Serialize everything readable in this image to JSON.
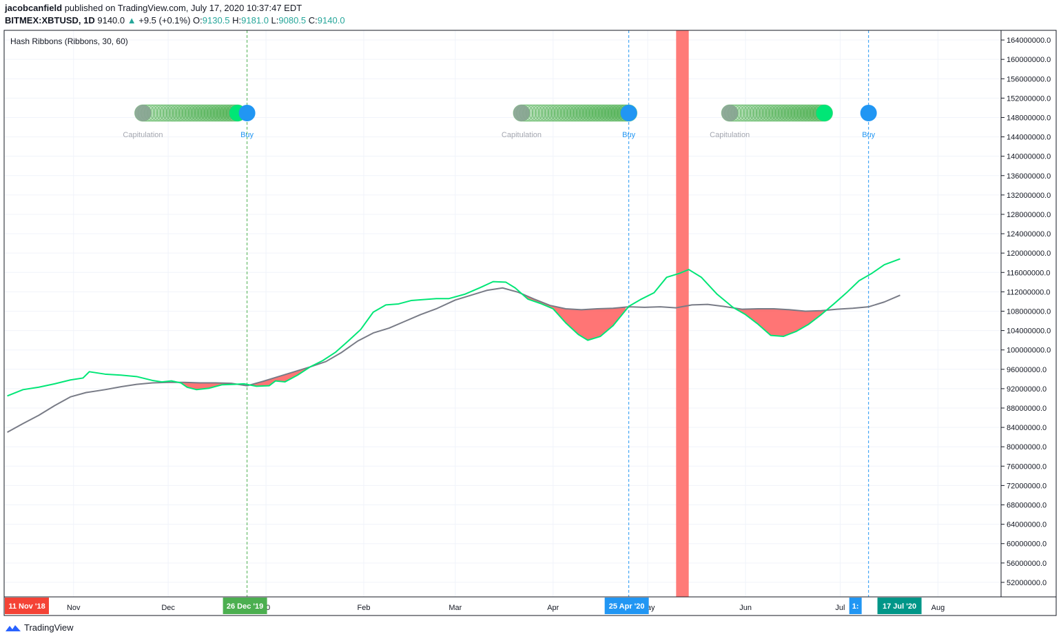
{
  "header": {
    "publisher": "jacobcanfield",
    "published_text": "published on TradingView.com, July 17, 2020 10:37:47 EDT",
    "symbol": "BITMEX:XBTUSD, 1D",
    "price": "9140.0",
    "change": "+9.5 (+0.1%)",
    "o_label": "O:",
    "o_value": "9130.5",
    "h_label": "H:",
    "h_value": "9181.0",
    "l_label": "L:",
    "l_value": "9080.5",
    "c_label": "C:",
    "c_value": "9140.0"
  },
  "footer": {
    "brand": "TradingView"
  },
  "chart_data": {
    "type": "line",
    "title": "Hash Ribbons (Ribbons, 30, 60)",
    "ylim": [
      49000000,
      166000000
    ],
    "y_ticks": [
      52000000,
      56000000,
      60000000,
      64000000,
      68000000,
      72000000,
      76000000,
      80000000,
      84000000,
      88000000,
      92000000,
      96000000,
      100000000,
      104000000,
      108000000,
      112000000,
      116000000,
      120000000,
      124000000,
      128000000,
      132000000,
      136000000,
      140000000,
      144000000,
      148000000,
      152000000,
      156000000,
      160000000,
      164000000
    ],
    "y_tick_labels": [
      "52000000.0",
      "56000000.0",
      "60000000.0",
      "64000000.0",
      "68000000.0",
      "72000000.0",
      "76000000.0",
      "80000000.0",
      "84000000.0",
      "88000000.0",
      "92000000.0",
      "96000000.0",
      "100000000.0",
      "104000000.0",
      "108000000.0",
      "112000000.0",
      "116000000.0",
      "120000000.0",
      "124000000.0",
      "128000000.0",
      "132000000.0",
      "136000000.0",
      "140000000.0",
      "144000000.0",
      "148000000.0",
      "152000000.0",
      "156000000.0",
      "160000000.0",
      "164000000.0"
    ],
    "x_range": [
      "2019-10-10",
      "2020-08-21"
    ],
    "x_ticks": [
      {
        "date": "2019-11-01",
        "label": "Nov"
      },
      {
        "date": "2019-12-01",
        "label": "Dec"
      },
      {
        "date": "2020-01-01",
        "label": "20"
      },
      {
        "date": "2020-02-01",
        "label": "Feb"
      },
      {
        "date": "2020-03-01",
        "label": "Mar"
      },
      {
        "date": "2020-04-01",
        "label": "Apr"
      },
      {
        "date": "2020-05-01",
        "label": "May"
      },
      {
        "date": "2020-06-01",
        "label": "Jun"
      },
      {
        "date": "2020-07-01",
        "label": "Jul"
      },
      {
        "date": "2020-08-01",
        "label": "Aug"
      }
    ],
    "series": [
      {
        "name": "",
        "color": "#00e676",
        "points": [
          [
            "2019-10-11",
            90500000
          ],
          [
            "2019-10-16",
            91800000
          ],
          [
            "2019-10-21",
            92300000
          ],
          [
            "2019-10-26",
            93000000
          ],
          [
            "2019-10-31",
            93800000
          ],
          [
            "2019-11-04",
            94200000
          ],
          [
            "2019-11-06",
            95500000
          ],
          [
            "2019-11-11",
            95000000
          ],
          [
            "2019-11-16",
            94800000
          ],
          [
            "2019-11-21",
            94500000
          ],
          [
            "2019-11-26",
            93700000
          ],
          [
            "2019-11-29",
            93400000
          ],
          [
            "2019-12-02",
            93600000
          ],
          [
            "2019-12-05",
            93200000
          ],
          [
            "2019-12-07",
            92300000
          ],
          [
            "2019-12-10",
            91800000
          ],
          [
            "2019-12-14",
            92100000
          ],
          [
            "2019-12-18",
            92800000
          ],
          [
            "2019-12-22",
            92900000
          ],
          [
            "2019-12-25",
            93000000
          ],
          [
            "2019-12-29",
            92500000
          ],
          [
            "2020-01-02",
            92600000
          ],
          [
            "2020-01-04",
            93600000
          ],
          [
            "2020-01-07",
            93400000
          ],
          [
            "2020-01-11",
            94800000
          ],
          [
            "2020-01-15",
            96500000
          ],
          [
            "2020-01-19",
            97800000
          ],
          [
            "2020-01-23",
            99500000
          ],
          [
            "2020-01-27",
            101800000
          ],
          [
            "2020-01-31",
            104200000
          ],
          [
            "2020-02-04",
            107800000
          ],
          [
            "2020-02-08",
            109300000
          ],
          [
            "2020-02-12",
            109500000
          ],
          [
            "2020-02-16",
            110200000
          ],
          [
            "2020-02-20",
            110400000
          ],
          [
            "2020-02-24",
            110600000
          ],
          [
            "2020-02-28",
            110600000
          ],
          [
            "2020-03-04",
            111500000
          ],
          [
            "2020-03-09",
            112900000
          ],
          [
            "2020-03-13",
            114100000
          ],
          [
            "2020-03-17",
            114000000
          ],
          [
            "2020-03-20",
            112800000
          ],
          [
            "2020-03-24",
            110500000
          ],
          [
            "2020-03-28",
            109600000
          ],
          [
            "2020-04-01",
            108500000
          ],
          [
            "2020-04-05",
            105600000
          ],
          [
            "2020-04-09",
            103200000
          ],
          [
            "2020-04-12",
            102000000
          ],
          [
            "2020-04-16",
            102800000
          ],
          [
            "2020-04-20",
            105000000
          ],
          [
            "2020-04-25",
            109000000
          ],
          [
            "2020-04-29",
            110500000
          ],
          [
            "2020-05-03",
            111800000
          ],
          [
            "2020-05-07",
            115000000
          ],
          [
            "2020-05-11",
            115800000
          ],
          [
            "2020-05-14",
            116600000
          ],
          [
            "2020-05-18",
            115000000
          ],
          [
            "2020-05-23",
            111500000
          ],
          [
            "2020-05-28",
            108800000
          ],
          [
            "2020-06-01",
            107300000
          ],
          [
            "2020-06-05",
            105300000
          ],
          [
            "2020-06-09",
            103000000
          ],
          [
            "2020-06-13",
            102800000
          ],
          [
            "2020-06-17",
            103800000
          ],
          [
            "2020-06-21",
            105300000
          ],
          [
            "2020-06-25",
            107300000
          ],
          [
            "2020-06-29",
            109500000
          ],
          [
            "2020-07-03",
            111800000
          ],
          [
            "2020-07-07",
            114300000
          ],
          [
            "2020-07-11",
            115800000
          ],
          [
            "2020-07-15",
            117600000
          ],
          [
            "2020-07-20",
            118800000
          ]
        ]
      },
      {
        "name": "",
        "color": "#787b86",
        "points": [
          [
            "2019-10-11",
            83000000
          ],
          [
            "2019-10-16",
            84800000
          ],
          [
            "2019-10-21",
            86500000
          ],
          [
            "2019-10-26",
            88500000
          ],
          [
            "2019-10-31",
            90300000
          ],
          [
            "2019-11-05",
            91200000
          ],
          [
            "2019-11-11",
            91800000
          ],
          [
            "2019-11-16",
            92400000
          ],
          [
            "2019-11-21",
            92900000
          ],
          [
            "2019-11-26",
            93200000
          ],
          [
            "2019-12-01",
            93300000
          ],
          [
            "2019-12-06",
            93300000
          ],
          [
            "2019-12-11",
            93200000
          ],
          [
            "2019-12-16",
            93200000
          ],
          [
            "2019-12-21",
            93100000
          ],
          [
            "2019-12-26",
            92600000
          ],
          [
            "2019-12-31",
            93500000
          ],
          [
            "2020-01-05",
            94500000
          ],
          [
            "2020-01-10",
            95500000
          ],
          [
            "2020-01-15",
            96500000
          ],
          [
            "2020-01-20",
            97600000
          ],
          [
            "2020-01-25",
            99500000
          ],
          [
            "2020-01-30",
            101800000
          ],
          [
            "2020-02-04",
            103500000
          ],
          [
            "2020-02-09",
            104500000
          ],
          [
            "2020-02-14",
            105900000
          ],
          [
            "2020-02-19",
            107300000
          ],
          [
            "2020-02-24",
            108500000
          ],
          [
            "2020-03-01",
            110300000
          ],
          [
            "2020-03-06",
            111300000
          ],
          [
            "2020-03-11",
            112300000
          ],
          [
            "2020-03-16",
            112800000
          ],
          [
            "2020-03-21",
            111900000
          ],
          [
            "2020-03-26",
            110500000
          ],
          [
            "2020-03-31",
            109200000
          ],
          [
            "2020-04-05",
            108500000
          ],
          [
            "2020-04-10",
            108300000
          ],
          [
            "2020-04-15",
            108500000
          ],
          [
            "2020-04-20",
            108600000
          ],
          [
            "2020-04-25",
            108900000
          ],
          [
            "2020-04-30",
            108800000
          ],
          [
            "2020-05-05",
            108900000
          ],
          [
            "2020-05-10",
            108700000
          ],
          [
            "2020-05-15",
            109300000
          ],
          [
            "2020-05-20",
            109400000
          ],
          [
            "2020-05-25",
            109000000
          ],
          [
            "2020-05-31",
            108400000
          ],
          [
            "2020-06-05",
            108500000
          ],
          [
            "2020-06-10",
            108500000
          ],
          [
            "2020-06-15",
            108300000
          ],
          [
            "2020-06-20",
            108000000
          ],
          [
            "2020-06-25",
            108100000
          ],
          [
            "2020-06-30",
            108400000
          ],
          [
            "2020-07-05",
            108600000
          ],
          [
            "2020-07-10",
            108900000
          ],
          [
            "2020-07-15",
            109900000
          ],
          [
            "2020-07-20",
            111300000
          ]
        ]
      }
    ],
    "signals": [
      {
        "capitulation_date": "2019-11-23",
        "buy_date": "2019-12-26",
        "capitulation_label": "Capitulation",
        "buy_label": "Buy"
      },
      {
        "capitulation_date": "2020-03-22",
        "buy_date": "2020-04-25",
        "capitulation_label": "Capitulation",
        "buy_label": "Buy"
      },
      {
        "capitulation_date": "2020-05-27",
        "buy_date": "2020-07-10",
        "capitulation_label": "Capitulation",
        "buy_label": "Buy"
      }
    ],
    "ribbon_circles": [
      {
        "start": "2019-11-23",
        "end": "2019-12-23"
      },
      {
        "start": "2020-03-22",
        "end": "2020-04-25"
      },
      {
        "start": "2020-05-27",
        "end": "2020-06-26"
      }
    ],
    "vlines": [
      {
        "date": "2019-12-26",
        "color": "#4caf50"
      },
      {
        "date": "2020-04-25",
        "color": "#2196f3"
      },
      {
        "date": "2020-07-10",
        "color": "#2196f3"
      }
    ],
    "highlight_band": {
      "start": "2020-05-10",
      "end": "2020-05-14",
      "color": "#ff7b78"
    },
    "date_badges": [
      {
        "date": "2019-10-10",
        "label": "11 Nov '18",
        "color": "#f44336"
      },
      {
        "date": "2019-12-26",
        "label": "26 Dec '19",
        "color": "#4caf50"
      },
      {
        "date": "2020-04-25",
        "label": "25 Apr '20",
        "color": "#2196f3"
      },
      {
        "date": "2020-07-10",
        "label": "1:",
        "color": "#2196f3"
      },
      {
        "date": "2020-07-15",
        "label": "17 Jul '20",
        "color": "#009688"
      }
    ],
    "colors": {
      "fast": "#00e676",
      "slow": "#787b86",
      "fill": "#ff5252",
      "grid": "#f0f3fa",
      "buy": "#2196f3",
      "capitulation": "#8fa19a"
    }
  }
}
